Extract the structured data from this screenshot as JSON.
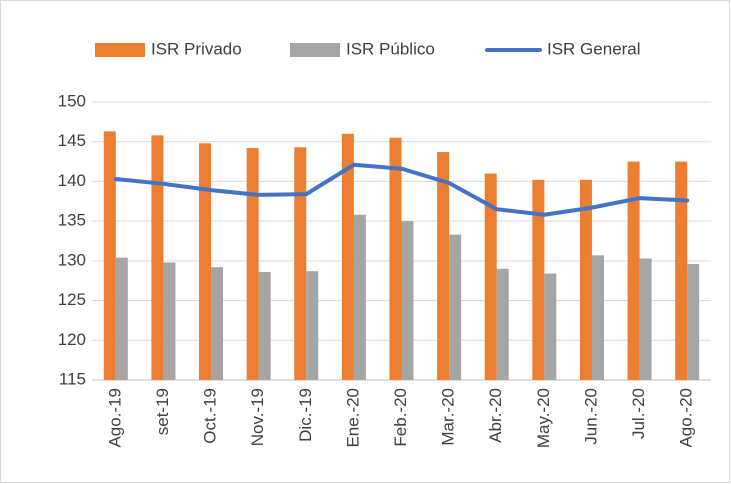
{
  "chart_data": {
    "type": "bar",
    "categories": [
      "Ago.-19",
      "set-19",
      "Oct.-19",
      "Nov.-19",
      "Dic.-19",
      "Ene.-20",
      "Feb.-20",
      "Mar.-20",
      "Abr.-20",
      "May.-20",
      "Jun.-20",
      "Jul.-20",
      "Ago.-20"
    ],
    "series": [
      {
        "name": "ISR Privado",
        "type": "bar",
        "color": "#ed7d31",
        "values": [
          146.3,
          145.8,
          144.8,
          144.2,
          144.3,
          146.0,
          145.5,
          143.7,
          141.0,
          140.2,
          140.2,
          142.5,
          142.5
        ]
      },
      {
        "name": "ISR Público",
        "type": "bar",
        "color": "#a5a5a5",
        "values": [
          130.4,
          129.8,
          129.2,
          128.6,
          128.7,
          135.8,
          135.0,
          133.3,
          129.0,
          128.4,
          130.7,
          130.3,
          129.6
        ]
      },
      {
        "name": "ISR General",
        "type": "line",
        "color": "#4472c4",
        "values": [
          140.3,
          139.7,
          138.9,
          138.3,
          138.4,
          142.1,
          141.6,
          139.8,
          136.5,
          135.8,
          136.7,
          137.9,
          137.6
        ]
      }
    ],
    "ylim": [
      115,
      150
    ],
    "yticks": [
      115,
      120,
      125,
      130,
      135,
      140,
      145,
      150
    ],
    "grid": true,
    "legend": "top"
  }
}
